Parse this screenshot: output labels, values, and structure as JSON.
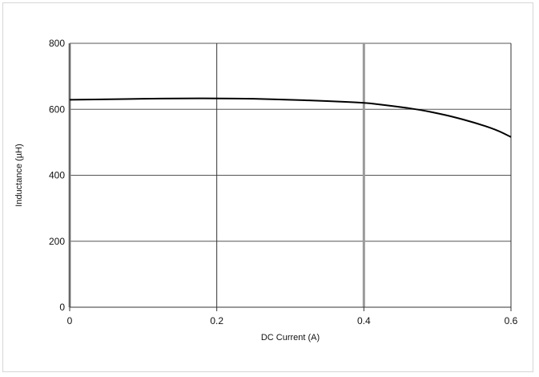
{
  "chart_data": {
    "type": "line",
    "title": "",
    "xlabel": "DC Current (A)",
    "ylabel": "Inductance (µH)",
    "xlim": [
      0,
      0.6
    ],
    "ylim": [
      0,
      800
    ],
    "xticks": [
      0,
      0.2,
      0.4,
      0.6
    ],
    "xtick_labels": [
      "0",
      "0.2",
      "0.4",
      "0.6"
    ],
    "yticks": [
      0,
      200,
      400,
      600,
      800
    ],
    "ytick_labels": [
      "0",
      "200",
      "400",
      "600",
      "800"
    ],
    "grid": true,
    "legend": "none",
    "series": [
      {
        "x": [
          0,
          0.05,
          0.1,
          0.15,
          0.2,
          0.25,
          0.3,
          0.35,
          0.4,
          0.42,
          0.45,
          0.48,
          0.5,
          0.52,
          0.55,
          0.58,
          0.6
        ],
        "y": [
          629,
          630,
          632,
          633,
          633,
          632,
          629,
          625,
          620,
          615,
          607,
          597,
          588,
          578,
          560,
          538,
          516
        ],
        "color": "#000000"
      }
    ]
  }
}
